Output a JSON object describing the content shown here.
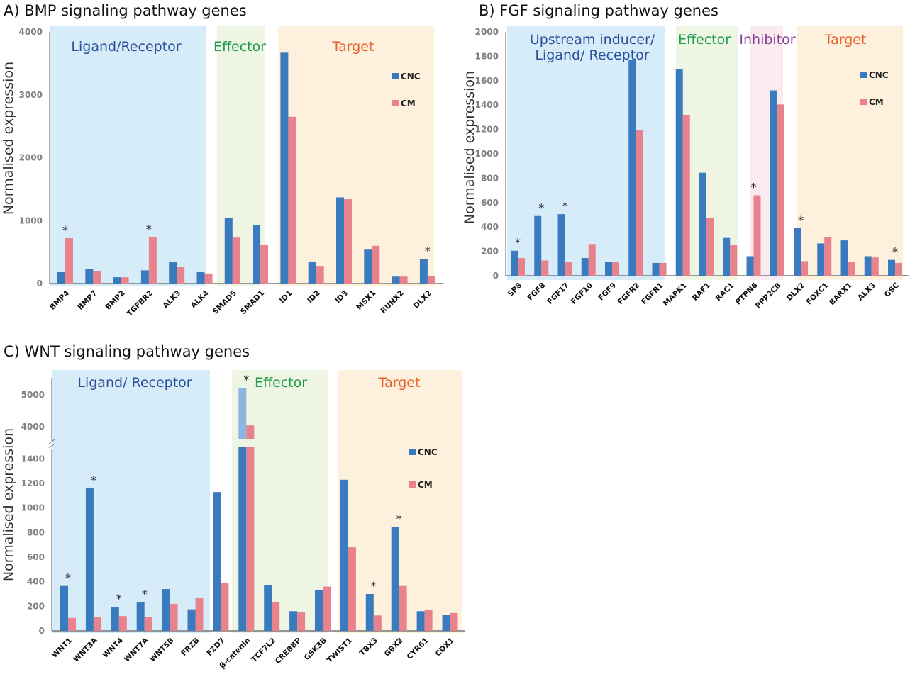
{
  "chart_data": [
    {
      "type": "bar",
      "title": "A) BMP signaling pathway genes",
      "ylabel": "Normalised expression",
      "ylim": [
        0,
        4000
      ],
      "yticks": [
        0,
        1000,
        2000,
        3000,
        4000
      ],
      "legend_position": "right",
      "grid": false,
      "categories": [
        "BMP4",
        "BMP7",
        "BMP2",
        "TGFBR2",
        "ALK3",
        "ALK4",
        "SMAD5",
        "SMAD1",
        "ID1",
        "ID2",
        "ID3",
        "MSX1",
        "RUNX2",
        "DLX2"
      ],
      "series": [
        {
          "name": "CNC",
          "color": "#3a7bbf",
          "values": [
            180,
            230,
            100,
            210,
            340,
            180,
            1040,
            930,
            3670,
            350,
            1370,
            550,
            110,
            390
          ]
        },
        {
          "name": "CM",
          "color": "#e8828c",
          "values": [
            720,
            200,
            100,
            740,
            260,
            160,
            730,
            610,
            2650,
            280,
            1340,
            600,
            110,
            120
          ]
        }
      ],
      "significant": [
        "BMP4",
        "TGFBR2",
        "DLX2"
      ],
      "significance_marker": "*",
      "groups": [
        {
          "label": "Ligand/Receptor",
          "first": 0,
          "last": 5,
          "bg": "#d7ecf9",
          "color": "#2b4f9b"
        },
        {
          "label": "Effector",
          "first": 6,
          "last": 7,
          "bg": "#eef5e3",
          "color": "#1f9d4c"
        },
        {
          "label": "Target",
          "first": 8,
          "last": 13,
          "bg": "#fdf0dc",
          "color": "#e8622d"
        }
      ]
    },
    {
      "type": "bar",
      "title": "B) FGF signaling pathway genes",
      "ylabel": "Normalised expression",
      "ylim": [
        0,
        2000
      ],
      "yticks": [
        0,
        200,
        400,
        600,
        800,
        1000,
        1200,
        1400,
        1600,
        1800,
        2000
      ],
      "legend_position": "right",
      "grid": false,
      "categories": [
        "SP8",
        "FGF8",
        "FGF17",
        "FGF10",
        "FGF9",
        "FGFR2",
        "FGFR1",
        "MAPK1",
        "RAF1",
        "RAC1",
        "PTPN6",
        "PPP2CB",
        "DLX2",
        "FOXC1",
        "BARX1",
        "ALX3",
        "GSC"
      ],
      "series": [
        {
          "name": "CNC",
          "color": "#3a7bbf",
          "values": [
            205,
            490,
            505,
            145,
            115,
            1770,
            105,
            1695,
            845,
            310,
            160,
            1520,
            390,
            265,
            290,
            160,
            130
          ]
        },
        {
          "name": "CM",
          "color": "#e8828c",
          "values": [
            145,
            125,
            115,
            260,
            110,
            1195,
            105,
            1320,
            475,
            250,
            660,
            1405,
            120,
            315,
            110,
            150,
            105
          ]
        }
      ],
      "significant": [
        "SP8",
        "FGF8",
        "FGF17",
        "PTPN6",
        "DLX2",
        "GSC"
      ],
      "significance_marker": "*",
      "groups": [
        {
          "label": "Upstream inducer/",
          "label2": "Ligand/ Receptor",
          "first": 0,
          "last": 6,
          "bg": "#d7ecf9",
          "color": "#2b4f9b"
        },
        {
          "label": "Effector",
          "first": 7,
          "last": 9,
          "bg": "#eef5e3",
          "color": "#1f9d4c"
        },
        {
          "label": "Inhibitor",
          "first": 10,
          "last": 11,
          "bg": "#f9ebee",
          "color": "#8c3d9c"
        },
        {
          "label": "Target",
          "first": 12,
          "last": 16,
          "bg": "#fdf0dc",
          "color": "#e8622d"
        }
      ]
    },
    {
      "type": "bar",
      "title": "C) WNT signaling pathway genes",
      "ylabel": "Normalised expression",
      "ylim": [
        0,
        5000
      ],
      "axis_break": [
        1500,
        3600
      ],
      "yticks": [
        0,
        200,
        400,
        600,
        800,
        1000,
        1200,
        1400,
        4000,
        5000
      ],
      "legend_position": "right",
      "grid": false,
      "categories": [
        "WNT1",
        "WNT3A",
        "WNT4",
        "WNT7A",
        "WNT5B",
        "FRZB",
        "FZD7",
        "β-catenin",
        "TCF7L2",
        "CREBBP",
        "GSK3B",
        "TWIST1",
        "TBX3",
        "GBX2",
        "CYR61",
        "CDX1"
      ],
      "series": [
        {
          "name": "CNC",
          "color": "#3a7bbf",
          "values": [
            365,
            1160,
            195,
            235,
            340,
            175,
            1130,
            5220,
            370,
            160,
            330,
            1230,
            300,
            845,
            160,
            130
          ]
        },
        {
          "name": "CM",
          "color": "#e8828c",
          "values": [
            105,
            110,
            120,
            110,
            220,
            270,
            390,
            4040,
            235,
            150,
            360,
            680,
            125,
            365,
            170,
            145
          ]
        }
      ],
      "significant": [
        "WNT1",
        "WNT3A",
        "WNT4",
        "WNT7A",
        "β-catenin",
        "TBX3",
        "GBX2"
      ],
      "significance_marker": "*",
      "groups": [
        {
          "label": "Ligand/ Receptor",
          "first": 0,
          "last": 6,
          "bg": "#d7ecf9",
          "color": "#2b4f9b"
        },
        {
          "label": "Effector",
          "first": 7,
          "last": 10,
          "bg": "#eef5e3",
          "color": "#1f9d4c"
        },
        {
          "label": "Target",
          "first": 11,
          "last": 15,
          "bg": "#fdf0dc",
          "color": "#e8622d"
        }
      ]
    }
  ]
}
